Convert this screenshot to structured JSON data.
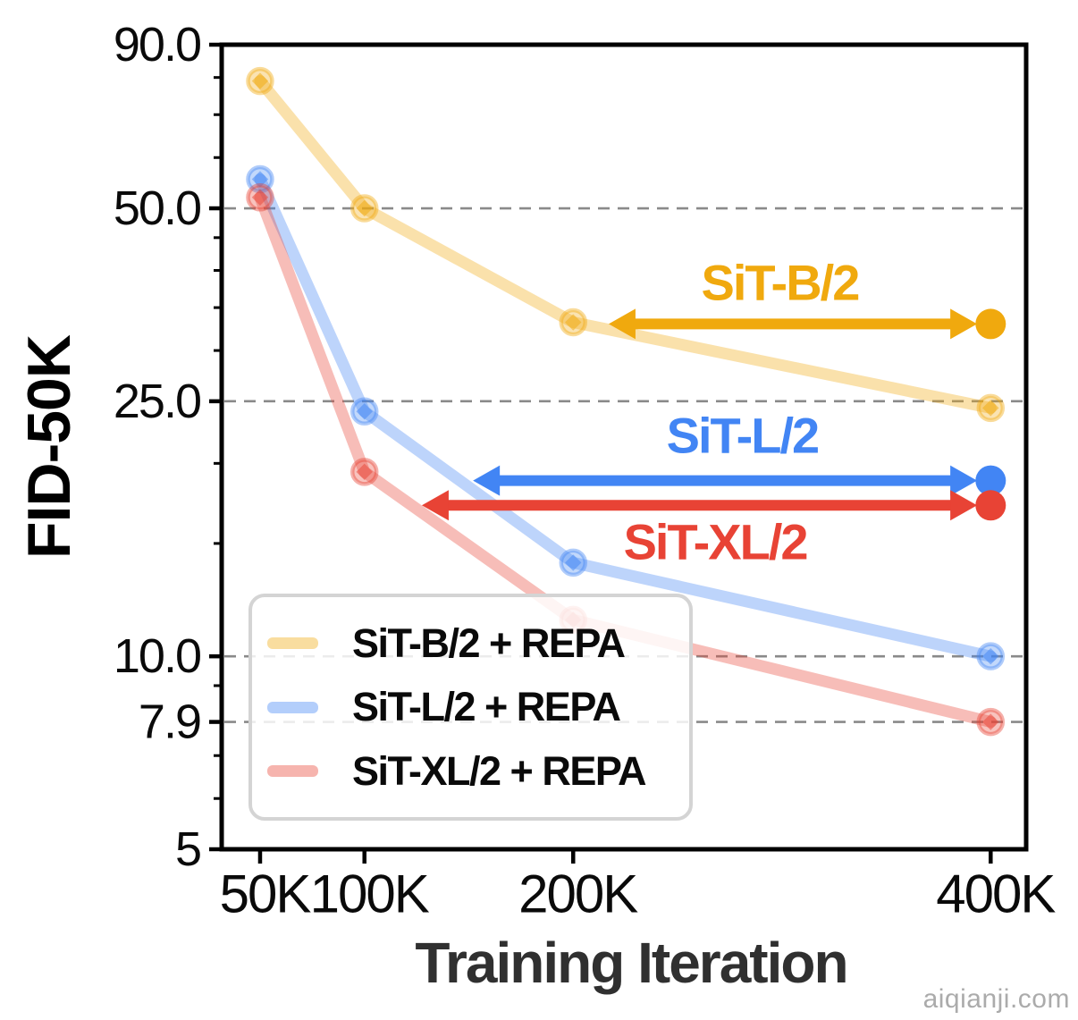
{
  "watermark": "aiqianji.com",
  "colors": {
    "gold": "#F0A90E",
    "blue": "#4285F4",
    "red": "#E84335",
    "grid": "#8A8A8A",
    "axis": "#000000",
    "legend_border": "#D4D4D4",
    "x_title": "#303030",
    "y_title": "#000000",
    "watermark_text": "#ABABAB"
  },
  "chart_data": {
    "type": "line",
    "title": "",
    "xlabel": "Training Iteration",
    "ylabel": "FID-50K",
    "x_scale": "linear",
    "y_scale": "log",
    "xlim": [
      31.6,
      417
    ],
    "ylim": [
      5,
      90
    ],
    "grid": "dashed horizontal",
    "legend_position": "lower left",
    "x_ticks": [
      {
        "value": 50,
        "label": "50K"
      },
      {
        "value": 100,
        "label": "100K"
      },
      {
        "value": 200,
        "label": "200K"
      },
      {
        "value": 400,
        "label": "400K"
      }
    ],
    "y_ticks": [
      {
        "value": 90,
        "label": "90.0"
      },
      {
        "value": 50,
        "label": "50.0"
      },
      {
        "value": 25,
        "label": "25.0"
      },
      {
        "value": 10,
        "label": "10.0"
      },
      {
        "value": 7.9,
        "label": "7.9"
      },
      {
        "value": 5,
        "label": "5"
      }
    ],
    "y_minor_ticks": [
      80,
      70,
      60,
      45,
      40,
      35,
      30,
      20,
      15,
      9,
      7,
      6
    ],
    "gridlines_y": [
      50,
      25,
      10,
      7.9
    ],
    "series": [
      {
        "name": "SiT-B/2 + REPA",
        "color_key": "gold",
        "style": "faded",
        "x_iterations_k": [
          50,
          100,
          200,
          400
        ],
        "fid": [
          79,
          50,
          33.2,
          24.4
        ]
      },
      {
        "name": "SiT-L/2 + REPA",
        "color_key": "blue",
        "style": "faded",
        "x_iterations_k": [
          50,
          100,
          200,
          400
        ],
        "fid": [
          55.5,
          24.1,
          14.0,
          10.0
        ]
      },
      {
        "name": "SiT-XL/2 + REPA",
        "color_key": "red",
        "style": "faded",
        "x_iterations_k": [
          50,
          100,
          200,
          400
        ],
        "fid": [
          52,
          19.4,
          11.4,
          7.9
        ]
      }
    ],
    "baseline_points": [
      {
        "name": "SiT-B/2",
        "color_key": "gold",
        "iter_k": 400,
        "fid": 33.0
      },
      {
        "name": "SiT-L/2",
        "color_key": "blue",
        "iter_k": 400,
        "fid": 18.8
      },
      {
        "name": "SiT-XL/2",
        "color_key": "red",
        "iter_k": 400,
        "fid": 17.2
      }
    ],
    "arrows": [
      {
        "series": "SiT-B/2",
        "color_key": "gold",
        "fid": 33.0,
        "from_iter_k": 217,
        "to_iter_k": 393.5
      },
      {
        "series": "SiT-L/2",
        "color_key": "blue",
        "fid": 18.8,
        "from_iter_k": 152,
        "to_iter_k": 393.5
      },
      {
        "series": "SiT-XL/2",
        "color_key": "red",
        "fid": 17.2,
        "from_iter_k": 127.5,
        "to_iter_k": 393.5
      }
    ],
    "annotations": [
      {
        "text": "SiT-B/2",
        "color_key": "gold",
        "iter_k": 299,
        "fid": 38.3
      },
      {
        "text": "SiT-L/2",
        "color_key": "blue",
        "iter_k": 281,
        "fid": 22.1
      },
      {
        "text": "SiT-XL/2",
        "color_key": "red",
        "iter_k": 268,
        "fid": 15.1
      }
    ]
  },
  "legend": {
    "items": [
      {
        "label": "SiT-B/2 + REPA",
        "color_key": "gold"
      },
      {
        "label": "SiT-L/2 + REPA",
        "color_key": "blue"
      },
      {
        "label": "SiT-XL/2 + REPA",
        "color_key": "red"
      }
    ]
  }
}
